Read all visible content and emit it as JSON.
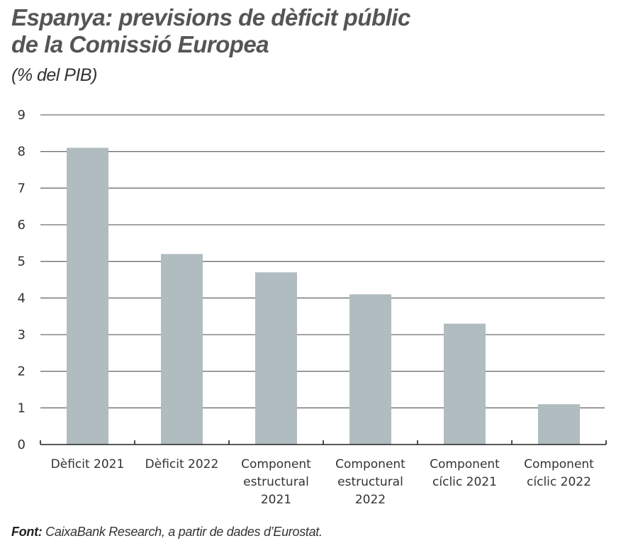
{
  "chart_data": {
    "type": "bar",
    "title": "Espanya: previsions de dèficit públic de la Comissió Europea",
    "title_lines": [
      "Espanya: previsions de dèficit públic",
      "de la Comissió Europea"
    ],
    "subtitle": "(% del PIB)",
    "xlabel": "",
    "ylabel": "",
    "ylim": [
      0,
      9
    ],
    "yticks": [
      0,
      1,
      2,
      3,
      4,
      5,
      6,
      7,
      8,
      9
    ],
    "grid": true,
    "legend": "none",
    "categories": [
      "Dèficit 2021",
      "Dèficit 2022",
      "Component estructural 2021",
      "Component estructural 2022",
      "Component cíclic 2021",
      "Component cíclic 2022"
    ],
    "category_label_lines": [
      [
        "Dèficit 2021"
      ],
      [
        "Dèficit 2022"
      ],
      [
        "Component",
        "estructural",
        "2021"
      ],
      [
        "Component",
        "estructural",
        "2022"
      ],
      [
        "Component",
        "cíclic 2021"
      ],
      [
        "Component",
        "cíclic 2022"
      ]
    ],
    "values": [
      8.1,
      5.2,
      4.7,
      4.1,
      3.3,
      1.1
    ],
    "bar_color": "#b1bcc0",
    "grid_color": "#6f6f6f"
  },
  "source": {
    "label": "Font:",
    "text": " CaixaBank Research, a partir de dades d’Eurostat."
  }
}
